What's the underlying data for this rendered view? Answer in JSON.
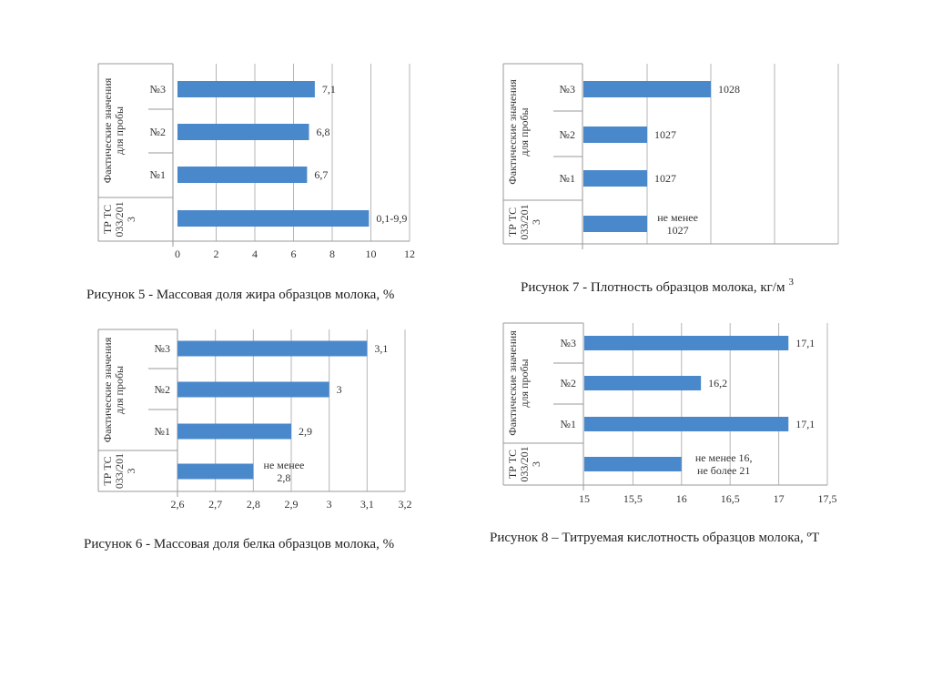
{
  "colors": {
    "bar": "#4a88cc",
    "grid": "#b5b5b5",
    "frame": "#9a9a9a"
  },
  "chart_data": [
    {
      "type": "bar",
      "orientation": "horizontal",
      "title": "Рисунок 5 - Массовая доля жира образцов молока, %",
      "title_sup": "",
      "groups": [
        "Фактические значения для пробы",
        "ТР ТС 033/201 3"
      ],
      "group_lines": [
        [
          "Фактические значения",
          "для пробы"
        ],
        [
          "ТР ТС",
          "033/201",
          "3"
        ]
      ],
      "categories": [
        "№3",
        "№2",
        "№1",
        ""
      ],
      "values": [
        7.1,
        6.8,
        6.7,
        9.9
      ],
      "value_labels": [
        [
          "7,1"
        ],
        [
          "6,8"
        ],
        [
          "6,7"
        ],
        [
          "0,1-9,9"
        ]
      ],
      "xlim": [
        0,
        12
      ],
      "xticks": [
        0,
        2,
        4,
        6,
        8,
        10,
        12
      ],
      "xtick_labels": [
        "0",
        "2",
        "4",
        "6",
        "8",
        "10",
        "12"
      ],
      "grid": true
    },
    {
      "type": "bar",
      "orientation": "horizontal",
      "title": "Рисунок 7 - Плотность образцов молока, кг/м",
      "title_sup": "3",
      "groups": [
        "Фактические значения для пробы",
        "ТР ТС 033/201 3"
      ],
      "group_lines": [
        [
          "Фактические значения",
          "для пробы"
        ],
        [
          "ТР ТС",
          "033/201",
          "3"
        ]
      ],
      "categories": [
        "№3",
        "№2",
        "№1",
        ""
      ],
      "values": [
        1028,
        1027,
        1027,
        1027
      ],
      "value_labels": [
        [
          "1028"
        ],
        [
          "1027"
        ],
        [
          "1027"
        ],
        [
          "не менее",
          "1027"
        ]
      ],
      "xlim": [
        1026,
        1030
      ],
      "xticks": [
        1026,
        1027,
        1028,
        1029,
        1030
      ],
      "xtick_labels": [],
      "grid": true
    },
    {
      "type": "bar",
      "orientation": "horizontal",
      "title": "Рисунок 6 - Массовая доля белка образцов молока, %",
      "title_sup": "",
      "groups": [
        "Фактические значения для пробы",
        "ТР ТС 033/201 3"
      ],
      "group_lines": [
        [
          "Фактические значения",
          "для пробы"
        ],
        [
          "ТР ТС",
          "033/201",
          "3"
        ]
      ],
      "categories": [
        "№3",
        "№2",
        "№1",
        ""
      ],
      "values": [
        3.1,
        3.0,
        2.9,
        2.8
      ],
      "value_labels": [
        [
          "3,1"
        ],
        [
          "3"
        ],
        [
          "2,9"
        ],
        [
          "не менее",
          "2,8"
        ]
      ],
      "xlim": [
        2.6,
        3.2
      ],
      "xticks": [
        2.6,
        2.7,
        2.8,
        2.9,
        3.0,
        3.1,
        3.2
      ],
      "xtick_labels": [
        "2,6",
        "2,7",
        "2,8",
        "2,9",
        "3",
        "3,1",
        "3,2"
      ],
      "grid": true
    },
    {
      "type": "bar",
      "orientation": "horizontal",
      "title": "Рисунок 8 – Титруемая кислотность образцов молока, ºТ",
      "title_sup": "",
      "groups": [
        "Фактические значения для пробы",
        "ТР ТС 033/201 3"
      ],
      "group_lines": [
        [
          "Фактические значения",
          "для пробы"
        ],
        [
          "ТР ТС",
          "033/201",
          "3"
        ]
      ],
      "categories": [
        "№3",
        "№2",
        "№1",
        ""
      ],
      "values": [
        17.1,
        16.2,
        17.1,
        16.0
      ],
      "value_labels": [
        [
          "17,1"
        ],
        [
          "16,2"
        ],
        [
          "17,1"
        ],
        [
          "не менее 16,",
          "не более 21"
        ]
      ],
      "xlim": [
        15,
        17.5
      ],
      "xticks": [
        15,
        15.5,
        16,
        16.5,
        17,
        17.5
      ],
      "xtick_labels": [
        "15",
        "15,5",
        "16",
        "16,5",
        "17",
        "17,5"
      ],
      "grid": true
    }
  ]
}
